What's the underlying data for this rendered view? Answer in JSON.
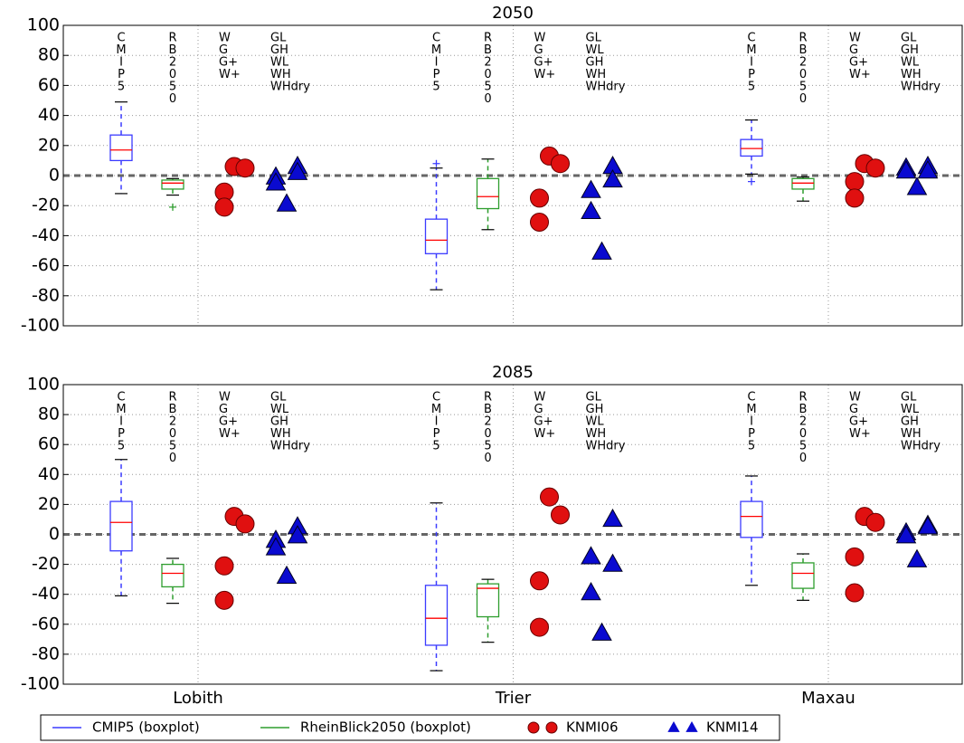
{
  "chart_data": [
    {
      "type": "box",
      "title": "2050",
      "ylim": [
        -100,
        100
      ],
      "yticks": [
        -100,
        -80,
        -60,
        -40,
        -20,
        0,
        20,
        40,
        60,
        80,
        100
      ],
      "grid": true,
      "hline": 0,
      "median_color": "#ff0000",
      "series": [
        {
          "name": "CMIP5 (boxplot)",
          "color": "#3b3bff",
          "kind": "box",
          "stats": [
            {
              "whislo": -12,
              "q1": 10,
              "med": 17,
              "q3": 27,
              "whishi": 49,
              "fliers": []
            },
            {
              "whislo": -76,
              "q1": -52,
              "med": -43,
              "q3": -29,
              "whishi": 5,
              "fliers": [
                8
              ]
            },
            {
              "whislo": 1,
              "q1": 13,
              "med": 18,
              "q3": 24,
              "whishi": 37,
              "fliers": [
                -4
              ]
            }
          ]
        },
        {
          "name": "RheinBlick2050 (boxplot)",
          "color": "#2e9e2e",
          "kind": "box",
          "stats": [
            {
              "whislo": -13,
              "q1": -9,
              "med": -5,
              "q3": -3,
              "whishi": -2,
              "fliers": [
                -21
              ]
            },
            {
              "whislo": -36,
              "q1": -22,
              "med": -14,
              "q3": -2,
              "whishi": 11,
              "fliers": []
            },
            {
              "whislo": -17,
              "q1": -9,
              "med": -5,
              "q3": -2,
              "whishi": -1,
              "fliers": []
            }
          ]
        },
        {
          "name": "KNMI06",
          "color": "#e01010",
          "kind": "circle",
          "values": [
            [
              -11,
              -21,
              6,
              5
            ],
            [
              -15,
              -31,
              13,
              8
            ],
            [
              -4,
              -15,
              8,
              5
            ]
          ]
        },
        {
          "name": "KNMI14",
          "color": "#0a0ad0",
          "kind": "triangle",
          "values": [
            [
              -1,
              -5,
              -19,
              6,
              2
            ],
            [
              -10,
              -24,
              -51,
              6,
              -3
            ],
            [
              5,
              3,
              -8,
              6,
              3
            ]
          ]
        }
      ],
      "annotations": [
        [
          [
            "C",
            "M",
            "I",
            "P",
            "5"
          ],
          [
            "R",
            "B",
            "2",
            "0",
            "5",
            "0"
          ],
          [
            "W",
            "G",
            "G+",
            "W+"
          ],
          [
            "GL",
            "GH",
            "WL",
            "WH",
            "WHdry"
          ]
        ],
        [
          [
            "C",
            "M",
            "I",
            "P",
            "5"
          ],
          [
            "R",
            "B",
            "2",
            "0",
            "5",
            "0"
          ],
          [
            "W",
            "G",
            "G+",
            "W+"
          ],
          [
            "GL",
            "WL",
            "GH",
            "WH",
            "WHdry"
          ]
        ],
        [
          [
            "C",
            "M",
            "I",
            "P",
            "5"
          ],
          [
            "R",
            "B",
            "2",
            "0",
            "5",
            "0"
          ],
          [
            "W",
            "G",
            "G+",
            "W+"
          ],
          [
            "GL",
            "GH",
            "WL",
            "WH",
            "WHdry"
          ]
        ]
      ]
    },
    {
      "type": "box",
      "title": "2085",
      "categories": [
        "Lobith",
        "Trier",
        "Maxau"
      ],
      "ylim": [
        -100,
        100
      ],
      "yticks": [
        -100,
        -80,
        -60,
        -40,
        -20,
        0,
        20,
        40,
        60,
        80,
        100
      ],
      "grid": true,
      "hline": 0,
      "median_color": "#ff0000",
      "series": [
        {
          "color": "#3b3bff",
          "kind": "box",
          "stats": [
            {
              "whislo": -41,
              "q1": -11,
              "med": 8,
              "q3": 22,
              "whishi": 50,
              "fliers": []
            },
            {
              "whislo": -91,
              "q1": -74,
              "med": -56,
              "q3": -34,
              "whishi": 21,
              "fliers": []
            },
            {
              "whislo": -34,
              "q1": -2,
              "med": 12,
              "q3": 22,
              "whishi": 39,
              "fliers": []
            }
          ]
        },
        {
          "color": "#2e9e2e",
          "kind": "box",
          "stats": [
            {
              "whislo": -46,
              "q1": -35,
              "med": -26,
              "q3": -20,
              "whishi": -16,
              "fliers": []
            },
            {
              "whislo": -72,
              "q1": -55,
              "med": -36,
              "q3": -33,
              "whishi": -30,
              "fliers": []
            },
            {
              "whislo": -44,
              "q1": -36,
              "med": -26,
              "q3": -19,
              "whishi": -13,
              "fliers": []
            }
          ]
        },
        {
          "color": "#e01010",
          "kind": "circle",
          "values": [
            [
              -21,
              -44,
              12,
              7
            ],
            [
              -31,
              -62,
              25,
              13
            ],
            [
              -15,
              -39,
              12,
              8
            ]
          ]
        },
        {
          "color": "#0a0ad0",
          "kind": "triangle",
          "values": [
            [
              -4,
              -9,
              -28,
              5,
              -1
            ],
            [
              -15,
              -39,
              -66,
              10,
              -20
            ],
            [
              1,
              -1,
              -17,
              6,
              5
            ]
          ]
        }
      ],
      "annotations": [
        [
          [
            "C",
            "M",
            "I",
            "P",
            "5"
          ],
          [
            "R",
            "B",
            "2",
            "0",
            "5",
            "0"
          ],
          [
            "W",
            "G",
            "G+",
            "W+"
          ],
          [
            "GL",
            "WL",
            "GH",
            "WH",
            "WHdry"
          ]
        ],
        [
          [
            "C",
            "M",
            "I",
            "P",
            "5"
          ],
          [
            "R",
            "B",
            "2",
            "0",
            "5",
            "0"
          ],
          [
            "W",
            "G",
            "G+",
            "W+"
          ],
          [
            "GL",
            "GH",
            "WL",
            "WH",
            "WHdry"
          ]
        ],
        [
          [
            "C",
            "M",
            "I",
            "P",
            "5"
          ],
          [
            "R",
            "B",
            "2",
            "0",
            "5",
            "0"
          ],
          [
            "W",
            "G",
            "G+",
            "W+"
          ],
          [
            "GL",
            "WL",
            "GH",
            "WH",
            "WHdry"
          ]
        ]
      ]
    }
  ]
}
